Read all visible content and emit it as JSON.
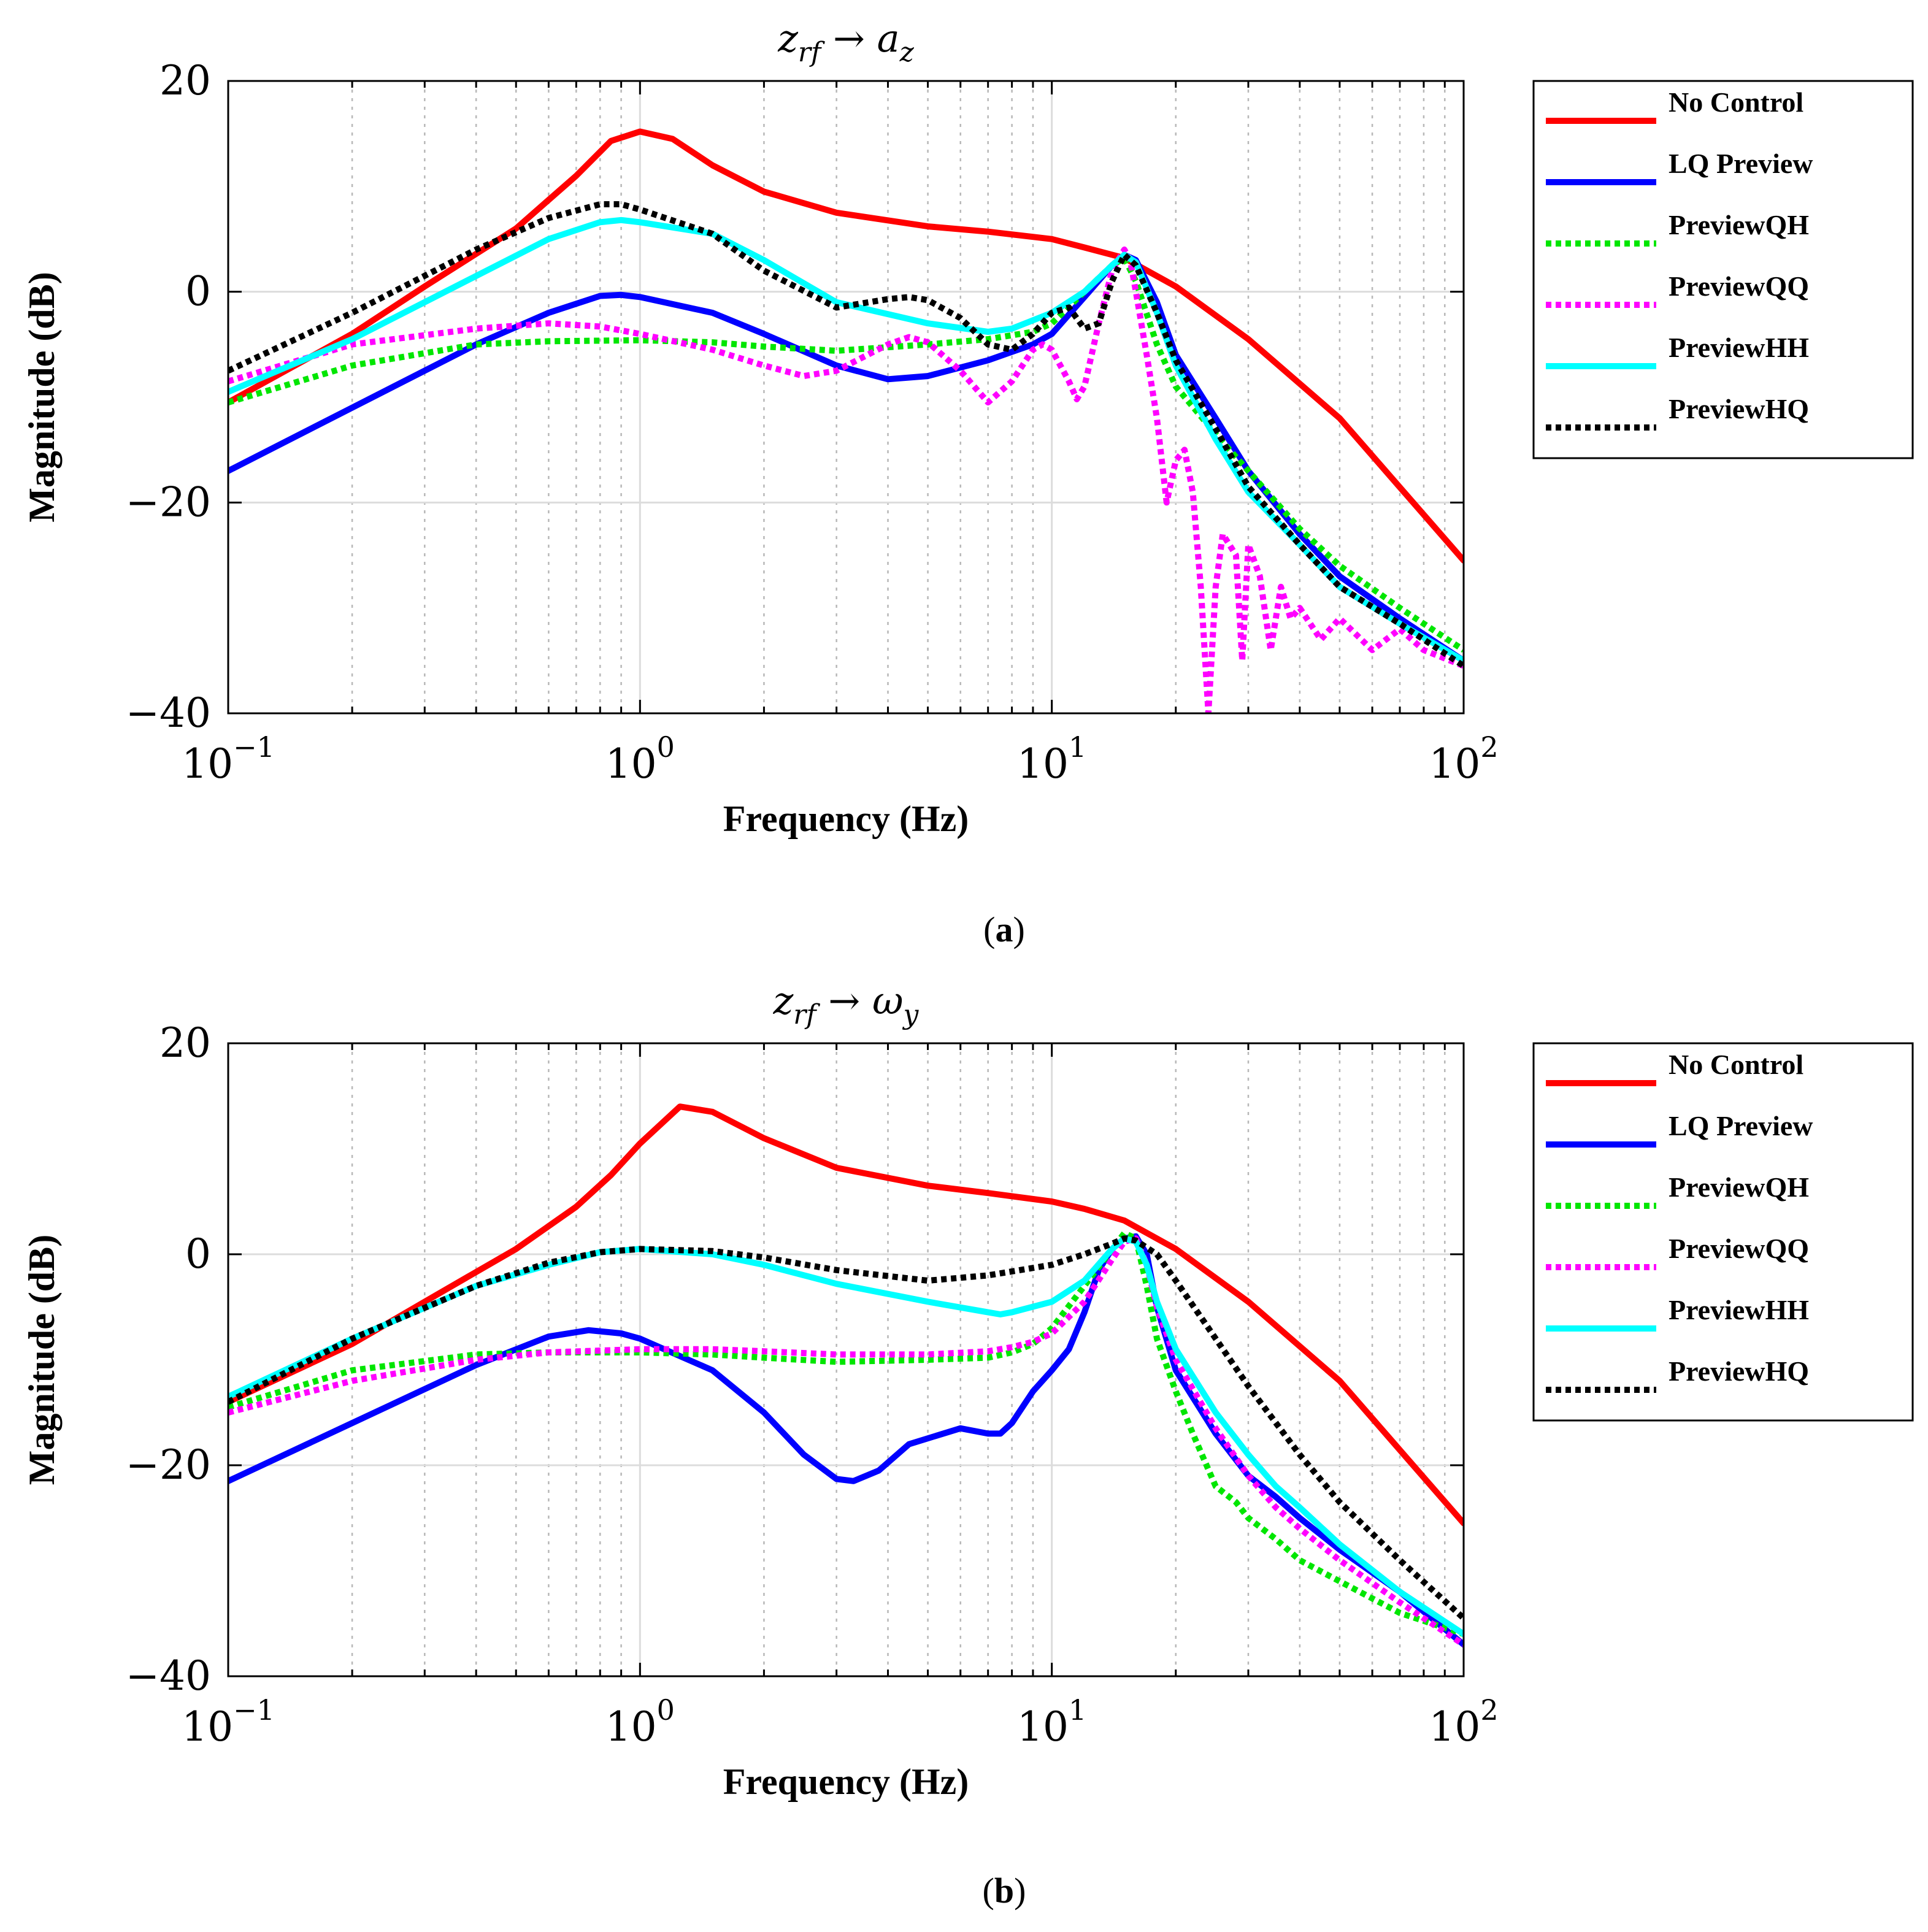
{
  "chart_data": [
    {
      "type": "line",
      "panel_caption": {
        "open": "(",
        "letter": "a",
        "close": ")"
      },
      "title": {
        "base": "z",
        "base_sub": "rf",
        "arrow": "→",
        "target": "a",
        "target_sub": "z"
      },
      "xlabel": "Frequency (Hz)",
      "ylabel": "Magnitude (dB)",
      "xscale": "log",
      "xlim": [
        0.1,
        100
      ],
      "ylim": [
        -40,
        20
      ],
      "yticks": [
        20,
        0,
        -20,
        -40
      ],
      "ytick_labels": [
        "20",
        "0",
        "−20",
        "−40"
      ],
      "xticks": [
        {
          "value": 0.1,
          "base": "10",
          "exp": "−1"
        },
        {
          "value": 1,
          "base": "10",
          "exp": "0"
        },
        {
          "value": 10,
          "base": "10",
          "exp": "1"
        },
        {
          "value": 100,
          "base": "10",
          "exp": "2"
        }
      ],
      "grid": true,
      "legend_position": "outside-right-top",
      "series": [
        {
          "name": "No Control",
          "color": "#ff0000",
          "dashed": false,
          "x": [
            0.1,
            0.2,
            0.3,
            0.5,
            0.7,
            0.85,
            1.0,
            1.2,
            1.5,
            2,
            3,
            5,
            7,
            10,
            12,
            15,
            20,
            30,
            50,
            100
          ],
          "y": [
            -10.5,
            -4,
            0.5,
            6,
            11,
            14.3,
            15.2,
            14.5,
            12,
            9.5,
            7.5,
            6.2,
            5.7,
            5,
            4.2,
            3.2,
            0.5,
            -4.5,
            -12,
            -25.5
          ]
        },
        {
          "name": "LQ Preview",
          "color": "#0000ff",
          "dashed": false,
          "x": [
            0.1,
            0.2,
            0.4,
            0.6,
            0.8,
            0.9,
            1,
            1.5,
            2,
            3,
            4,
            5,
            7,
            9,
            10,
            12,
            14,
            15,
            16,
            18,
            20,
            25,
            30,
            40,
            50,
            70,
            100
          ],
          "y": [
            -17,
            -11,
            -5,
            -2,
            -0.4,
            -0.3,
            -0.5,
            -2,
            -4,
            -7,
            -8.3,
            -8,
            -6.5,
            -5,
            -4,
            -0.5,
            2.5,
            3.5,
            3,
            -1,
            -6,
            -12,
            -17,
            -23,
            -27,
            -31,
            -35
          ]
        },
        {
          "name": "PreviewQH",
          "color": "#00e600",
          "dashed": true,
          "x": [
            0.1,
            0.2,
            0.4,
            0.6,
            1,
            1.5,
            2,
            3,
            5,
            7,
            9,
            10,
            12,
            14,
            15,
            16,
            18,
            20,
            25,
            30,
            40,
            50,
            70,
            100
          ],
          "y": [
            -10.5,
            -7,
            -5,
            -4.7,
            -4.6,
            -4.8,
            -5.2,
            -5.6,
            -5,
            -4.5,
            -3.8,
            -3,
            0,
            2.5,
            3.2,
            1,
            -5,
            -9,
            -13.5,
            -17,
            -22.5,
            -26,
            -30,
            -34
          ]
        },
        {
          "name": "PreviewQQ",
          "color": "#ff00ff",
          "dashed": true,
          "x": [
            0.1,
            0.2,
            0.4,
            0.6,
            0.8,
            1,
            1.5,
            2,
            2.5,
            3,
            4,
            4.5,
            5,
            6,
            7,
            8,
            9,
            9.5,
            10,
            11,
            11.5,
            12,
            13,
            14,
            15,
            15.5,
            16,
            17,
            18,
            19,
            20,
            21,
            22,
            23,
            24,
            25,
            26,
            28,
            29,
            30,
            32,
            34,
            36,
            38,
            40,
            45,
            50,
            60,
            70,
            80,
            100
          ],
          "y": [
            -8.5,
            -5,
            -3.5,
            -3,
            -3.3,
            -4,
            -5.5,
            -7,
            -8,
            -7.5,
            -5,
            -4.3,
            -4.8,
            -7.5,
            -10.5,
            -8.5,
            -5.5,
            -5,
            -5.5,
            -8.5,
            -10.2,
            -9,
            -3,
            2,
            4,
            3,
            0,
            -6,
            -12,
            -20,
            -16,
            -15,
            -19,
            -28,
            -40,
            -28,
            -23,
            -25,
            -35,
            -24,
            -27,
            -34,
            -28,
            -31,
            -30,
            -33,
            -31,
            -34,
            -32,
            -34,
            -35.5
          ]
        },
        {
          "name": "PreviewHH",
          "color": "#00ffff",
          "dashed": false,
          "x": [
            0.1,
            0.2,
            0.4,
            0.6,
            0.8,
            0.9,
            1,
            1.5,
            2,
            3,
            5,
            7,
            8,
            10,
            12,
            14,
            15,
            16,
            18,
            20,
            25,
            30,
            40,
            50,
            70,
            100
          ],
          "y": [
            -9.5,
            -4.5,
            1.5,
            5,
            6.6,
            6.8,
            6.6,
            5.5,
            3,
            -1,
            -3,
            -3.8,
            -3.5,
            -2,
            0,
            2.5,
            3.5,
            2.8,
            -2,
            -7,
            -14,
            -19,
            -24,
            -28,
            -31.5,
            -35
          ]
        },
        {
          "name": "PreviewHQ",
          "color": "#000000",
          "dashed": true,
          "x": [
            0.1,
            0.2,
            0.4,
            0.6,
            0.8,
            0.9,
            1,
            1.5,
            2,
            3,
            4,
            4.5,
            5,
            6,
            7,
            8,
            9,
            10,
            11,
            12,
            13,
            14,
            15,
            16,
            18,
            20,
            25,
            30,
            40,
            50,
            70,
            100
          ],
          "y": [
            -7.5,
            -2,
            4,
            7,
            8.3,
            8.3,
            7.8,
            5.5,
            2,
            -1.5,
            -0.7,
            -0.5,
            -0.8,
            -2.5,
            -5,
            -5.5,
            -4,
            -2,
            -1.5,
            -3.5,
            -3,
            1,
            3.5,
            2.5,
            -2,
            -6.5,
            -13,
            -18.5,
            -24,
            -28,
            -31.5,
            -35.5
          ]
        }
      ]
    },
    {
      "type": "line",
      "panel_caption": {
        "open": "(",
        "letter": "b",
        "close": ")"
      },
      "title": {
        "base": "z",
        "base_sub": "rf",
        "arrow": "→",
        "target": "ω",
        "target_sub": "y"
      },
      "xlabel": "Frequency (Hz)",
      "ylabel": "Magnitude (dB)",
      "xscale": "log",
      "xlim": [
        0.1,
        100
      ],
      "ylim": [
        -40,
        20
      ],
      "yticks": [
        20,
        0,
        -20,
        -40
      ],
      "ytick_labels": [
        "20",
        "0",
        "−20",
        "−40"
      ],
      "xticks": [
        {
          "value": 0.1,
          "base": "10",
          "exp": "−1"
        },
        {
          "value": 1,
          "base": "10",
          "exp": "0"
        },
        {
          "value": 10,
          "base": "10",
          "exp": "1"
        },
        {
          "value": 100,
          "base": "10",
          "exp": "2"
        }
      ],
      "grid": true,
      "legend_position": "outside-right-top",
      "series": [
        {
          "name": "No Control",
          "color": "#ff0000",
          "dashed": false,
          "x": [
            0.1,
            0.2,
            0.3,
            0.5,
            0.7,
            0.85,
            1.0,
            1.25,
            1.5,
            2,
            3,
            5,
            7,
            10,
            12,
            15,
            20,
            30,
            50,
            100
          ],
          "y": [
            -14,
            -8.5,
            -4.5,
            0.5,
            4.5,
            7.5,
            10.5,
            14,
            13.5,
            11,
            8.2,
            6.5,
            5.8,
            5,
            4.3,
            3.2,
            0.5,
            -4.5,
            -12,
            -25.5
          ]
        },
        {
          "name": "LQ Preview",
          "color": "#0000ff",
          "dashed": false,
          "x": [
            0.1,
            0.2,
            0.4,
            0.6,
            0.75,
            0.9,
            1,
            1.5,
            2,
            2.5,
            3,
            3.3,
            3.8,
            4.5,
            6,
            7,
            7.5,
            8,
            9,
            10,
            11,
            12,
            13,
            14,
            15,
            16,
            17,
            18,
            20,
            25,
            30,
            35,
            40,
            50,
            70,
            100
          ],
          "y": [
            -21.5,
            -16,
            -10.5,
            -7.8,
            -7.2,
            -7.5,
            -8,
            -11,
            -15,
            -19,
            -21.3,
            -21.5,
            -20.5,
            -18,
            -16.5,
            -17,
            -17,
            -16,
            -13,
            -11,
            -9,
            -5.5,
            -1.5,
            0.5,
            1.5,
            1.7,
            0,
            -5,
            -11,
            -17,
            -21,
            -23,
            -25,
            -28,
            -32,
            -37
          ]
        },
        {
          "name": "PreviewQH",
          "color": "#00e600",
          "dashed": true,
          "x": [
            0.1,
            0.2,
            0.4,
            0.6,
            1,
            1.5,
            2,
            3,
            5,
            7,
            8,
            9,
            10,
            12,
            14,
            15,
            16,
            17,
            18,
            20,
            22,
            25,
            28,
            30,
            35,
            40,
            50,
            70,
            100
          ],
          "y": [
            -14.5,
            -11,
            -9.5,
            -9.3,
            -9.3,
            -9.5,
            -9.8,
            -10.2,
            -10,
            -9.8,
            -9.3,
            -8.5,
            -7,
            -3,
            0.5,
            2,
            1.5,
            -3,
            -8,
            -13,
            -17,
            -22,
            -23.5,
            -25,
            -27,
            -29,
            -31,
            -34,
            -36
          ]
        },
        {
          "name": "PreviewQQ",
          "color": "#ff00ff",
          "dashed": true,
          "x": [
            0.1,
            0.2,
            0.4,
            0.6,
            1,
            1.5,
            2,
            3,
            5,
            7,
            8,
            9,
            10,
            12,
            14,
            15,
            16,
            17,
            18,
            20,
            25,
            30,
            35,
            40,
            50,
            70,
            100
          ],
          "y": [
            -15,
            -12,
            -10,
            -9.3,
            -9,
            -9,
            -9.2,
            -9.5,
            -9.5,
            -9.2,
            -8.8,
            -8.3,
            -7.5,
            -4.5,
            -0.5,
            1.2,
            1.5,
            -1,
            -5,
            -10,
            -16.5,
            -21,
            -24,
            -26,
            -29,
            -33,
            -37
          ]
        },
        {
          "name": "PreviewHH",
          "color": "#00ffff",
          "dashed": false,
          "x": [
            0.1,
            0.2,
            0.4,
            0.6,
            0.8,
            1,
            1.5,
            2,
            3,
            5,
            7,
            7.5,
            8,
            10,
            12,
            14,
            15,
            16,
            17,
            18,
            20,
            25,
            30,
            35,
            40,
            50,
            70,
            100
          ],
          "y": [
            -13.5,
            -8,
            -3,
            -1,
            0.2,
            0.5,
            0,
            -1,
            -2.8,
            -4.5,
            -5.5,
            -5.7,
            -5.5,
            -4.5,
            -2.5,
            0.5,
            1.5,
            1.2,
            -1,
            -4.5,
            -9,
            -15,
            -19,
            -22,
            -24,
            -27.5,
            -32,
            -36
          ]
        },
        {
          "name": "PreviewHQ",
          "color": "#000000",
          "dashed": true,
          "x": [
            0.1,
            0.2,
            0.4,
            0.6,
            0.8,
            1,
            1.5,
            2,
            3,
            5,
            7,
            10,
            12,
            14,
            15,
            16,
            18,
            20,
            25,
            30,
            40,
            50,
            70,
            100
          ],
          "y": [
            -14,
            -8,
            -3,
            -0.8,
            0.2,
            0.5,
            0.3,
            -0.3,
            -1.5,
            -2.5,
            -2,
            -1,
            0,
            1,
            1.5,
            1.3,
            0,
            -2.5,
            -8,
            -12.5,
            -19,
            -23.5,
            -29,
            -34.5
          ]
        }
      ]
    }
  ]
}
